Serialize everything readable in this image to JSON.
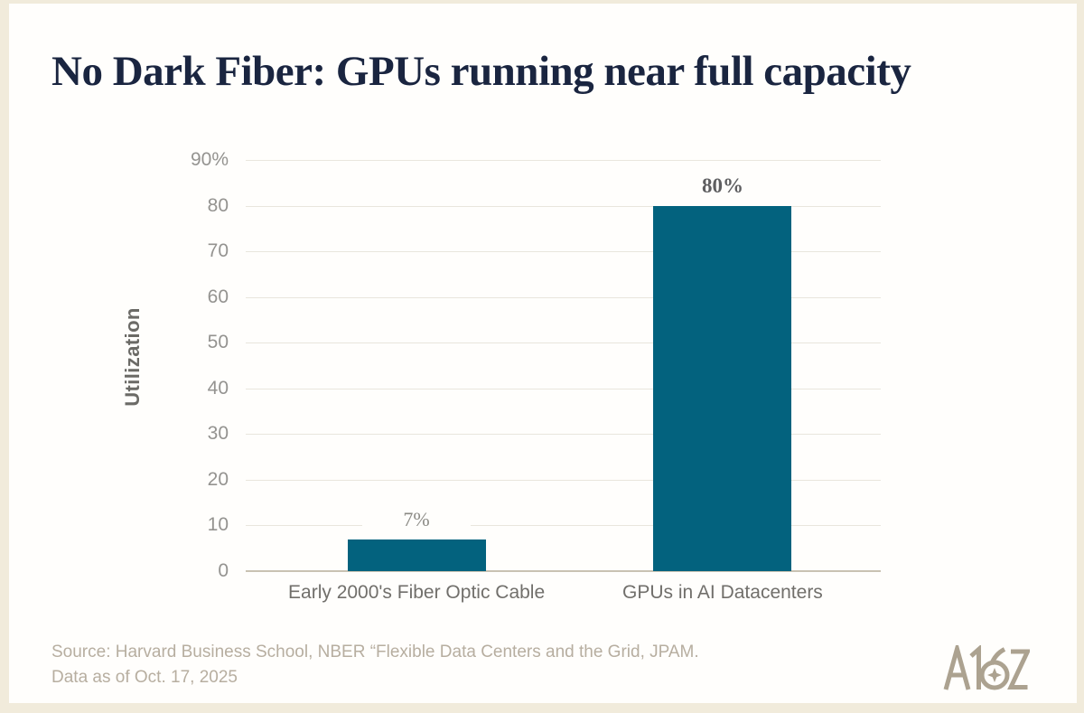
{
  "chart_data": {
    "type": "bar",
    "title": "No Dark Fiber: GPUs running near full capacity",
    "categories": [
      "Early 2000's Fiber Optic Cable",
      "GPUs in AI Datacenters"
    ],
    "values": [
      7,
      80
    ],
    "value_labels": [
      "7%",
      "80%"
    ],
    "value_label_bold": [
      false,
      true
    ],
    "ylabel": "Utilization",
    "xlabel": "",
    "ylim": [
      0,
      90
    ],
    "yticks": [
      0,
      10,
      20,
      30,
      40,
      50,
      60,
      70,
      80,
      90
    ],
    "ytick_labels": [
      "0",
      "10",
      "20",
      "30",
      "40",
      "50",
      "60",
      "70",
      "80",
      "90%"
    ],
    "grid": true,
    "legend_position": "none",
    "bar_color": "#03627e"
  },
  "footer": {
    "source_line1": "Source: Harvard Business School, NBER “Flexible Data Centers and the Grid, JPAM.",
    "source_line2": "Data as of Oct. 17, 2025",
    "logo_text": "A16Z"
  },
  "colors": {
    "background": "#fffefc",
    "frame_border": "#f1ebdb",
    "title_text": "#1a2540",
    "bar": "#03627e",
    "gridline": "#e9e6dd",
    "axis_line": "#c9c2b2",
    "tick_text": "#949390",
    "footer_text": "#b7aea0",
    "logo": "#aca290"
  }
}
